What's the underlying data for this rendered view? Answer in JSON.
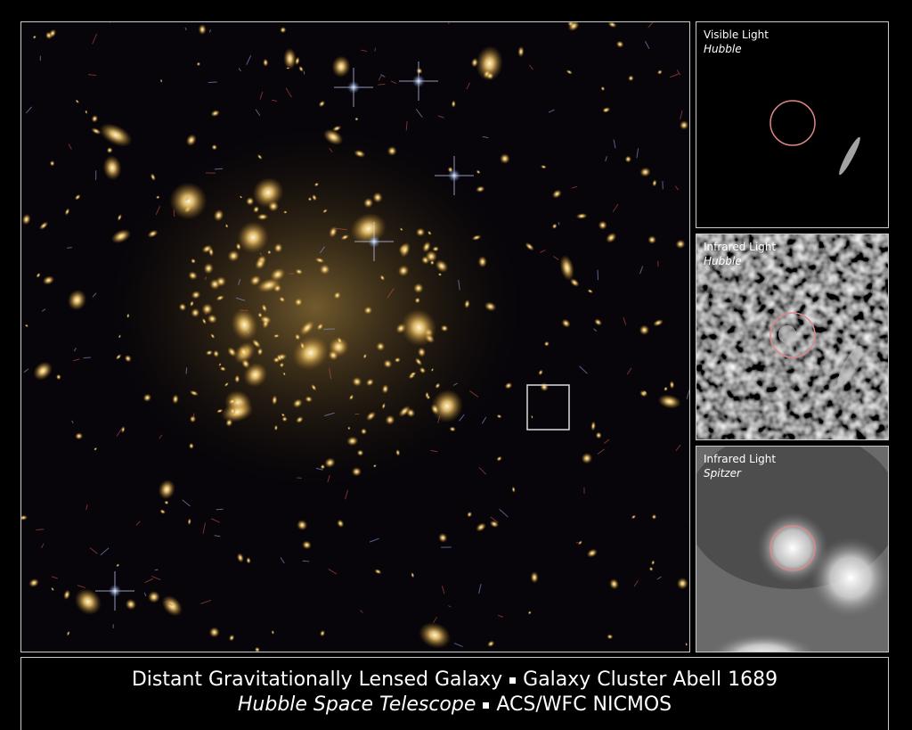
{
  "panels": [
    {
      "label": "Visible Light",
      "source": "Hubble"
    },
    {
      "label": "Infrared Light",
      "source": "Hubble"
    },
    {
      "label": "Infrared Light",
      "source": "Spitzer"
    }
  ],
  "caption": {
    "line1": [
      "Distant Gravitationally Lensed Galaxy",
      "Galaxy Cluster Abell 1689"
    ],
    "line2": [
      "Hubble Space Telescope",
      "ACS/WFC NICMOS"
    ]
  }
}
